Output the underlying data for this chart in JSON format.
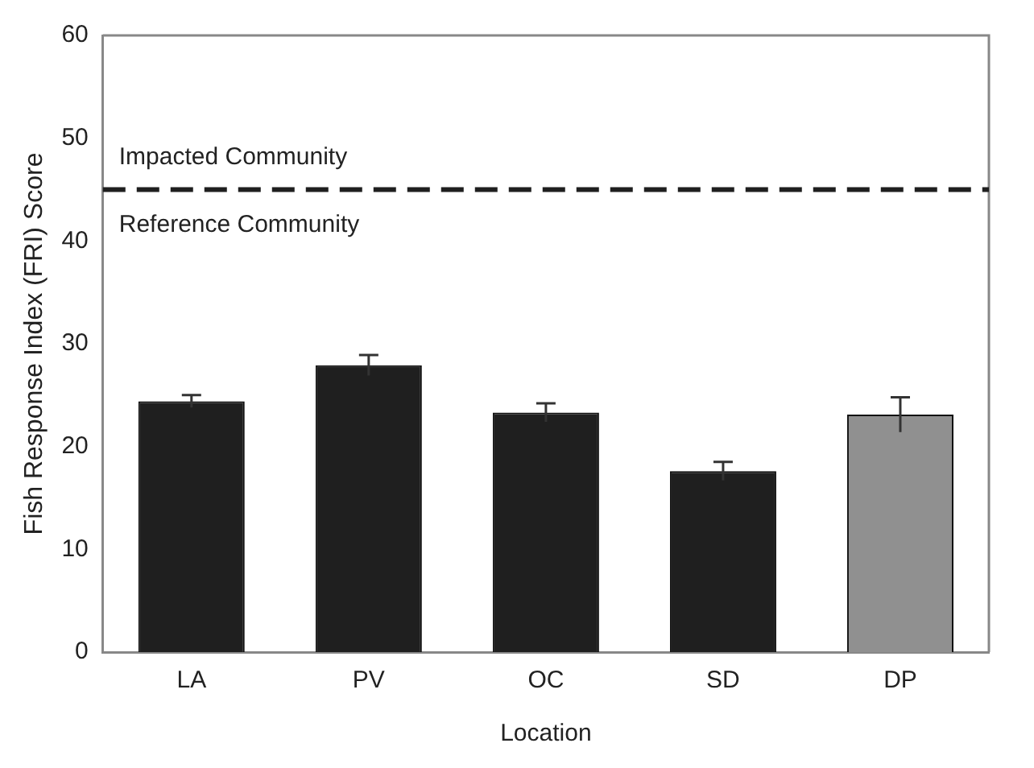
{
  "chart_data": {
    "type": "bar",
    "xlabel": "Location",
    "ylabel": "Fish Response Index (FRI) Score",
    "categories": [
      "LA",
      "PV",
      "OC",
      "SD",
      "DP"
    ],
    "values": [
      24.4,
      27.9,
      23.3,
      17.6,
      23.1
    ],
    "errors": [
      0.6,
      1.0,
      0.9,
      0.9,
      1.7
    ],
    "colors": [
      "#1f1f1f",
      "#1f1f1f",
      "#1f1f1f",
      "#1f1f1f",
      "#909090"
    ],
    "ylim": [
      0,
      60
    ],
    "yticks": [
      0,
      10,
      20,
      30,
      40,
      50,
      60
    ],
    "grid": false,
    "legend": false,
    "ref_lines": [
      {
        "axis": "y",
        "value": 45,
        "color": "#1f1f1f",
        "line_style": "dashed"
      }
    ],
    "annotations": [
      "Impacted Community",
      "Reference Community"
    ]
  }
}
